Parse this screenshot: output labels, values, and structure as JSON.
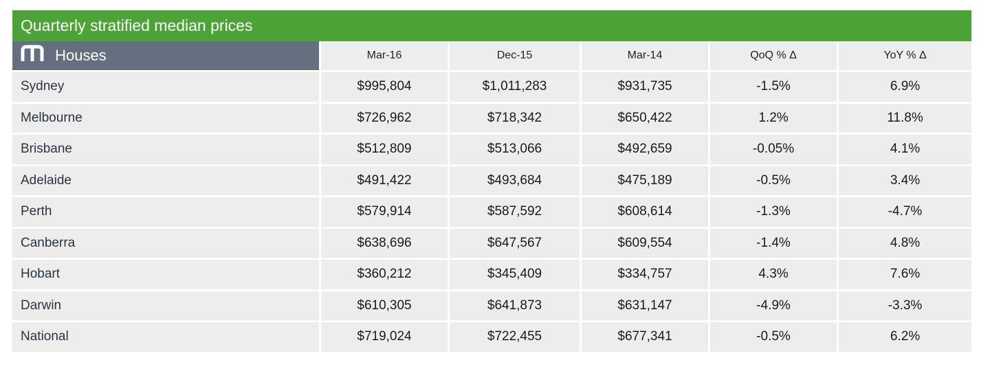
{
  "title": "Quarterly stratified median prices",
  "header": {
    "section_label": "Houses",
    "logo_icon": "brand-m-logo-icon",
    "columns": [
      "Mar-16",
      "Dec-15",
      "Mar-14",
      "QoQ % Δ",
      "YoY % Δ"
    ]
  },
  "rows": [
    {
      "city": "Sydney",
      "values": [
        "$995,804",
        "$1,011,283",
        "$931,735",
        "-1.5%",
        "6.9%"
      ]
    },
    {
      "city": "Melbourne",
      "values": [
        "$726,962",
        "$718,342",
        "$650,422",
        "1.2%",
        "11.8%"
      ]
    },
    {
      "city": "Brisbane",
      "values": [
        "$512,809",
        "$513,066",
        "$492,659",
        "-0.05%",
        "4.1%"
      ]
    },
    {
      "city": "Adelaide",
      "values": [
        "$491,422",
        "$493,684",
        "$475,189",
        "-0.5%",
        "3.4%"
      ]
    },
    {
      "city": "Perth",
      "values": [
        "$579,914",
        "$587,592",
        "$608,614",
        "-1.3%",
        "-4.7%"
      ]
    },
    {
      "city": "Canberra",
      "values": [
        "$638,696",
        "$647,567",
        "$609,554",
        "-1.4%",
        "4.8%"
      ]
    },
    {
      "city": "Hobart",
      "values": [
        "$360,212",
        "$345,409",
        "$334,757",
        "4.3%",
        "7.6%"
      ]
    },
    {
      "city": "Darwin",
      "values": [
        "$610,305",
        "$641,873",
        "$631,147",
        "-4.9%",
        "-3.3%"
      ]
    },
    {
      "city": "National",
      "values": [
        "$719,024",
        "$722,455",
        "$677,341",
        "-0.5%",
        "6.2%"
      ]
    }
  ],
  "colors": {
    "title_bar": "#4ba435",
    "section_header": "#656f7f",
    "cell_background": "#ededed"
  }
}
